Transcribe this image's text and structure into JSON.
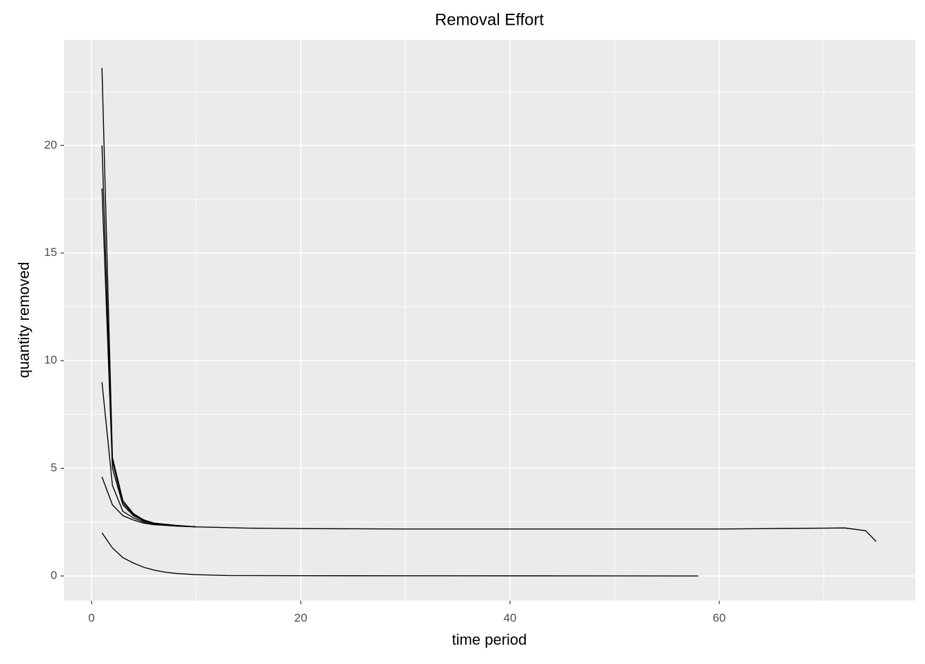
{
  "chart_data": {
    "type": "line",
    "title": "Removal Effort",
    "x_label": "time period",
    "y_label": "quantity removed",
    "xlim": [
      -2.63,
      78.75
    ],
    "ylim": [
      -1.15,
      24.9
    ],
    "xticks": [
      0,
      20,
      40,
      60
    ],
    "yticks": [
      0,
      5,
      10,
      15,
      20
    ],
    "grid": true,
    "series": [
      {
        "color": "#000000",
        "x": [
          1,
          2,
          3,
          4,
          5,
          6,
          8,
          10,
          15,
          20,
          30,
          45,
          60,
          65,
          70,
          72,
          74,
          75
        ],
        "values": [
          23.6,
          5.5,
          3.5,
          2.9,
          2.6,
          2.45,
          2.35,
          2.28,
          2.22,
          2.2,
          2.18,
          2.18,
          2.18,
          2.2,
          2.22,
          2.23,
          2.1,
          1.6
        ]
      },
      {
        "color": "#000000",
        "x": [
          1,
          2,
          3,
          4,
          5,
          6,
          8,
          10
        ],
        "values": [
          20,
          5.3,
          3.4,
          2.85,
          2.6,
          2.45,
          2.35,
          2.28
        ]
      },
      {
        "color": "#000000",
        "x": [
          1,
          2,
          3,
          4,
          5,
          6,
          8,
          10
        ],
        "values": [
          18,
          5,
          3.3,
          2.8,
          2.55,
          2.42,
          2.33,
          2.28
        ]
      },
      {
        "color": "#000000",
        "x": [
          1,
          2,
          3,
          4,
          5,
          6,
          8,
          10
        ],
        "values": [
          9,
          4.2,
          3.0,
          2.7,
          2.5,
          2.4,
          2.32,
          2.28
        ]
      },
      {
        "color": "#000000",
        "x": [
          1,
          2,
          3,
          4,
          5,
          6,
          8,
          10
        ],
        "values": [
          4.6,
          3.3,
          2.8,
          2.6,
          2.45,
          2.38,
          2.32,
          2.28
        ]
      },
      {
        "color": "#000000",
        "x": [
          1,
          2,
          3,
          4,
          5,
          6,
          7,
          8,
          10,
          13,
          20,
          58
        ],
        "values": [
          2.0,
          1.3,
          0.85,
          0.6,
          0.4,
          0.27,
          0.18,
          0.12,
          0.06,
          0.02,
          0.01,
          0
        ]
      }
    ]
  }
}
